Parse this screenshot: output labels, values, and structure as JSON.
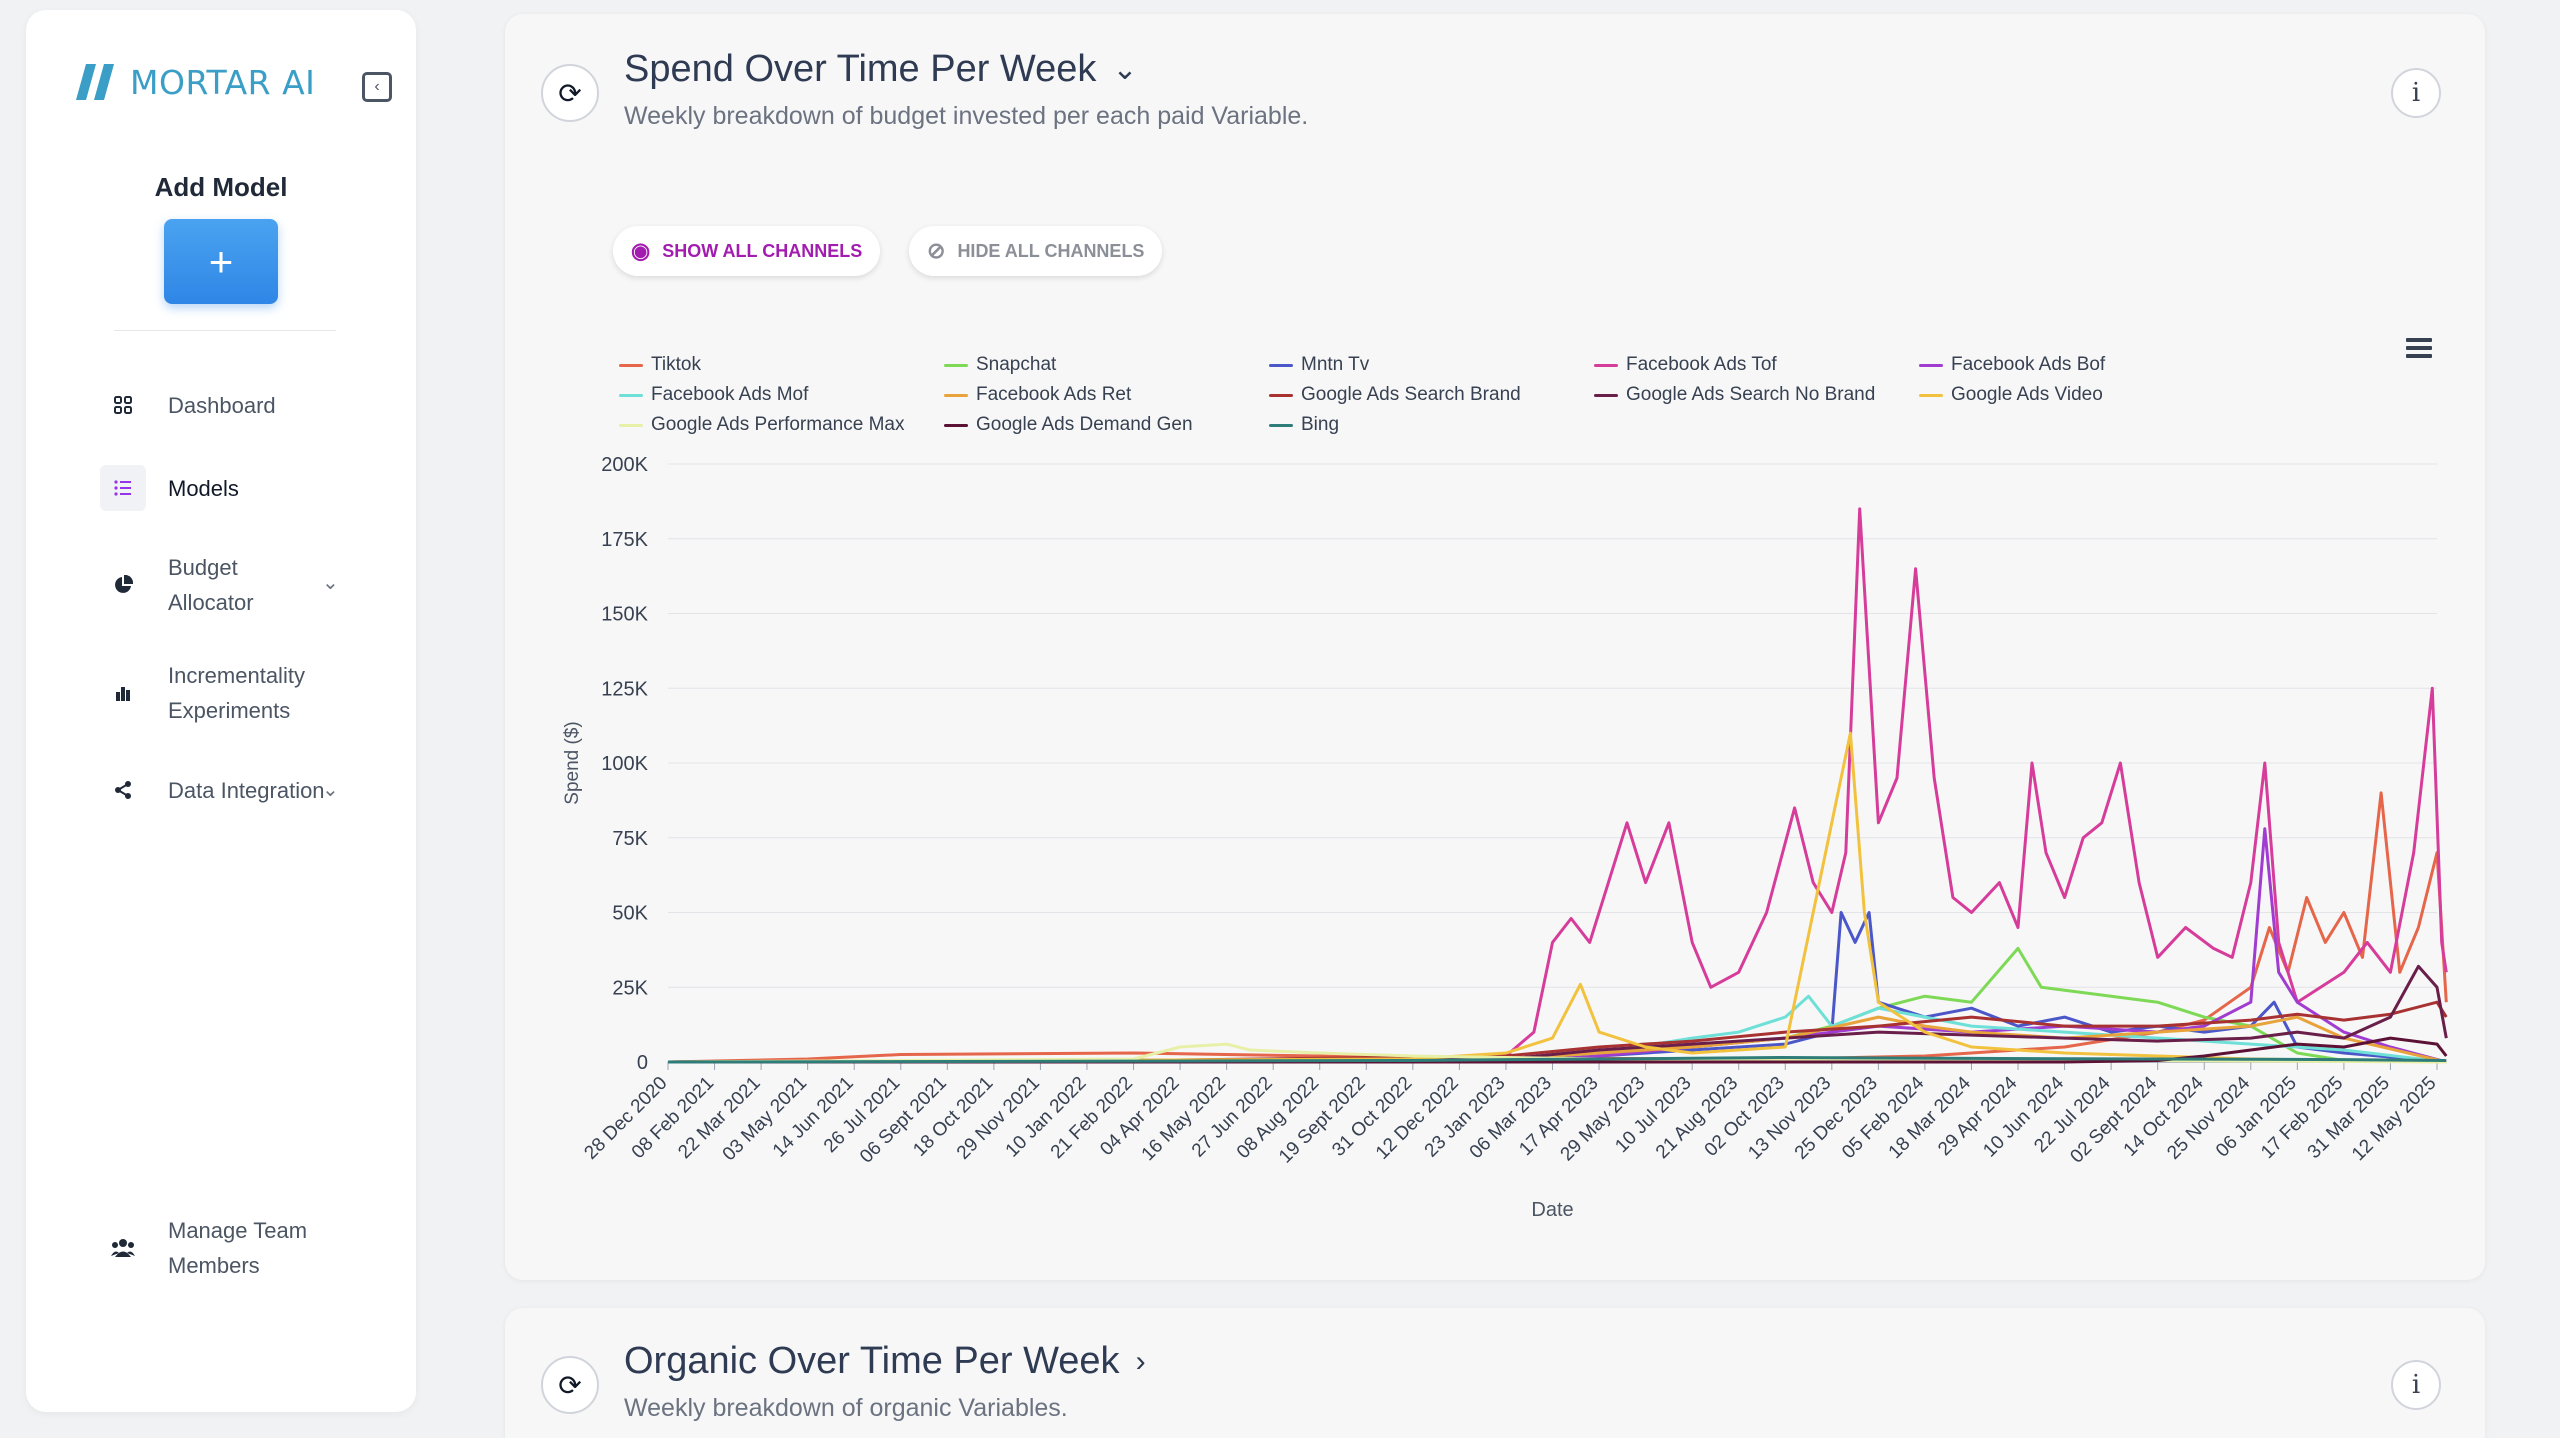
{
  "app": {
    "brand": "MORTAR AI"
  },
  "sidebar": {
    "add_model_title": "Add Model",
    "add_button_label": "+",
    "items": [
      {
        "label": "Dashboard",
        "icon": "dashboard-grid-icon"
      },
      {
        "label": "Models",
        "icon": "list-icon",
        "active": true
      },
      {
        "label": "Budget Allocator",
        "icon": "pie-chart-icon"
      },
      {
        "label": "Incrementality Experiments",
        "icon": "bar-chart-icon"
      },
      {
        "label": "Data Integration",
        "icon": "share-nodes-icon"
      },
      {
        "label": "Manage Team Members",
        "icon": "team-icon"
      }
    ]
  },
  "card1": {
    "title": "Spend Over Time Per Week",
    "subtitle": "Weekly breakdown of budget invested per each paid Variable.",
    "show_all": "SHOW ALL CHANNELS",
    "hide_all": "HIDE ALL CHANNELS"
  },
  "card2": {
    "title": "Organic Over Time Per Week",
    "subtitle": "Weekly breakdown of organic Variables."
  },
  "colors": {
    "accent": "#9333ea",
    "brand": "#3a9ec6",
    "add_button": "#2f86e6"
  },
  "chart_data": {
    "type": "line",
    "xlabel": "Date",
    "ylabel": "Spend ($)",
    "ylim": [
      0,
      200000
    ],
    "yticks": [
      "0",
      "25K",
      "50K",
      "75K",
      "100K",
      "125K",
      "150K",
      "175K",
      "200K"
    ],
    "xtick_labels": [
      "28 Dec 2020",
      "08 Feb 2021",
      "22 Mar 2021",
      "03 May 2021",
      "14 Jun 2021",
      "26 Jul 2021",
      "06 Sept 2021",
      "18 Oct 2021",
      "29 Nov 2021",
      "10 Jan 2022",
      "21 Feb 2022",
      "04 Apr 2022",
      "16 May 2022",
      "27 Jun 2022",
      "08 Aug 2022",
      "19 Sept 2022",
      "31 Oct 2022",
      "12 Dec 2022",
      "23 Jan 2023",
      "06 Mar 2023",
      "17 Apr 2023",
      "29 May 2023",
      "10 Jul 2023",
      "21 Aug 2023",
      "02 Oct 2023",
      "13 Nov 2023",
      "25 Dec 2023",
      "05 Feb 2024",
      "18 Mar 2024",
      "29 Apr 2024",
      "10 Jun 2024",
      "22 Jul 2024",
      "02 Sept 2024",
      "14 Oct 2024",
      "25 Nov 2024",
      "06 Jan 2025",
      "17 Feb 2025",
      "31 Mar 2025",
      "12 May 2025"
    ],
    "legend_placement": "top",
    "grid": true,
    "series": [
      {
        "name": "Tiktok",
        "color": "#e5664a",
        "points": [
          [
            0,
            0
          ],
          [
            3,
            1000
          ],
          [
            5,
            2500
          ],
          [
            10,
            3000
          ],
          [
            14,
            2000
          ],
          [
            17,
            1500
          ],
          [
            20,
            1200
          ],
          [
            24,
            1000
          ],
          [
            27,
            2000
          ],
          [
            30,
            5000
          ],
          [
            32,
            10000
          ],
          [
            33,
            14000
          ],
          [
            34,
            25000
          ],
          [
            34.4,
            45000
          ],
          [
            34.8,
            30000
          ],
          [
            35.2,
            55000
          ],
          [
            35.6,
            40000
          ],
          [
            36,
            50000
          ],
          [
            36.4,
            35000
          ],
          [
            36.8,
            90000
          ],
          [
            37.2,
            30000
          ],
          [
            37.6,
            45000
          ],
          [
            38,
            70000
          ],
          [
            38.2,
            20000
          ]
        ]
      },
      {
        "name": "Snapchat",
        "color": "#7ed957",
        "points": [
          [
            0,
            0
          ],
          [
            15,
            200
          ],
          [
            18,
            1000
          ],
          [
            20,
            3000
          ],
          [
            22,
            5000
          ],
          [
            24,
            8000
          ],
          [
            25,
            12000
          ],
          [
            26,
            18000
          ],
          [
            27,
            22000
          ],
          [
            28,
            20000
          ],
          [
            29,
            38000
          ],
          [
            29.5,
            25000
          ],
          [
            30,
            24000
          ],
          [
            31,
            22000
          ],
          [
            32,
            20000
          ],
          [
            33,
            15000
          ],
          [
            34,
            12000
          ],
          [
            35,
            3000
          ],
          [
            36,
            500
          ],
          [
            38.2,
            0
          ]
        ]
      },
      {
        "name": "Mntn Tv",
        "color": "#4b57c8",
        "points": [
          [
            0,
            0
          ],
          [
            18,
            500
          ],
          [
            20,
            2000
          ],
          [
            22,
            4000
          ],
          [
            24,
            6000
          ],
          [
            25,
            10000
          ],
          [
            25.2,
            50000
          ],
          [
            25.5,
            40000
          ],
          [
            25.8,
            50000
          ],
          [
            26,
            20000
          ],
          [
            27,
            15000
          ],
          [
            28,
            18000
          ],
          [
            29,
            12000
          ],
          [
            30,
            15000
          ],
          [
            31,
            10000
          ],
          [
            32,
            12000
          ],
          [
            33,
            10000
          ],
          [
            34,
            12000
          ],
          [
            34.5,
            20000
          ],
          [
            35,
            5000
          ],
          [
            36,
            3000
          ],
          [
            38.2,
            0
          ]
        ]
      },
      {
        "name": "Facebook Ads Tof",
        "color": "#d63d9a",
        "points": [
          [
            0,
            0
          ],
          [
            16,
            0
          ],
          [
            17,
            1000
          ],
          [
            18,
            2000
          ],
          [
            18.6,
            10000
          ],
          [
            19,
            40000
          ],
          [
            19.4,
            48000
          ],
          [
            19.8,
            40000
          ],
          [
            20.2,
            60000
          ],
          [
            20.6,
            80000
          ],
          [
            21,
            60000
          ],
          [
            21.5,
            80000
          ],
          [
            22,
            40000
          ],
          [
            22.4,
            25000
          ],
          [
            23,
            30000
          ],
          [
            23.6,
            50000
          ],
          [
            24.2,
            85000
          ],
          [
            24.6,
            60000
          ],
          [
            25,
            50000
          ],
          [
            25.3,
            70000
          ],
          [
            25.6,
            185000
          ],
          [
            26,
            80000
          ],
          [
            26.4,
            95000
          ],
          [
            26.8,
            165000
          ],
          [
            27.2,
            95000
          ],
          [
            27.6,
            55000
          ],
          [
            28,
            50000
          ],
          [
            28.6,
            60000
          ],
          [
            29,
            45000
          ],
          [
            29.3,
            100000
          ],
          [
            29.6,
            70000
          ],
          [
            30,
            55000
          ],
          [
            30.4,
            75000
          ],
          [
            30.8,
            80000
          ],
          [
            31.2,
            100000
          ],
          [
            31.6,
            60000
          ],
          [
            32,
            35000
          ],
          [
            32.6,
            45000
          ],
          [
            33.2,
            38000
          ],
          [
            33.6,
            35000
          ],
          [
            34,
            60000
          ],
          [
            34.3,
            100000
          ],
          [
            34.6,
            40000
          ],
          [
            35,
            20000
          ],
          [
            36,
            30000
          ],
          [
            36.5,
            40000
          ],
          [
            37,
            30000
          ],
          [
            37.5,
            70000
          ],
          [
            37.9,
            125000
          ],
          [
            38.1,
            40000
          ],
          [
            38.2,
            30000
          ]
        ]
      },
      {
        "name": "Facebook Ads Bof",
        "color": "#a03ccf",
        "points": [
          [
            0,
            0
          ],
          [
            18,
            0
          ],
          [
            20,
            2000
          ],
          [
            22,
            5000
          ],
          [
            24,
            8000
          ],
          [
            26,
            12000
          ],
          [
            28,
            10000
          ],
          [
            30,
            12000
          ],
          [
            32,
            10000
          ],
          [
            33,
            12000
          ],
          [
            34,
            20000
          ],
          [
            34.3,
            78000
          ],
          [
            34.6,
            30000
          ],
          [
            35,
            20000
          ],
          [
            36,
            10000
          ],
          [
            37,
            5000
          ],
          [
            38.2,
            0
          ]
        ]
      },
      {
        "name": "Facebook Ads Mof",
        "color": "#6fe0d7",
        "points": [
          [
            0,
            0
          ],
          [
            18,
            1000
          ],
          [
            20,
            3000
          ],
          [
            22,
            8000
          ],
          [
            23,
            10000
          ],
          [
            24,
            15000
          ],
          [
            24.5,
            22000
          ],
          [
            25,
            12000
          ],
          [
            26,
            18000
          ],
          [
            27,
            15000
          ],
          [
            28,
            12000
          ],
          [
            30,
            10000
          ],
          [
            32,
            8000
          ],
          [
            34,
            6000
          ],
          [
            36,
            4000
          ],
          [
            38.2,
            0
          ]
        ]
      },
      {
        "name": "Facebook Ads Ret",
        "color": "#e8a33b",
        "points": [
          [
            0,
            0
          ],
          [
            18,
            1000
          ],
          [
            20,
            3000
          ],
          [
            22,
            5000
          ],
          [
            24,
            8000
          ],
          [
            26,
            15000
          ],
          [
            27,
            12000
          ],
          [
            28,
            10000
          ],
          [
            30,
            8000
          ],
          [
            32,
            10000
          ],
          [
            34,
            12000
          ],
          [
            35,
            15000
          ],
          [
            36,
            8000
          ],
          [
            38.2,
            0
          ]
        ]
      },
      {
        "name": "Google Ads Search Brand",
        "color": "#a83131",
        "points": [
          [
            0,
            0
          ],
          [
            10,
            500
          ],
          [
            18,
            2000
          ],
          [
            20,
            5000
          ],
          [
            22,
            7000
          ],
          [
            24,
            10000
          ],
          [
            26,
            12000
          ],
          [
            28,
            15000
          ],
          [
            30,
            12000
          ],
          [
            32,
            12000
          ],
          [
            34,
            14000
          ],
          [
            35,
            16000
          ],
          [
            36,
            14000
          ],
          [
            37,
            16000
          ],
          [
            38,
            20000
          ],
          [
            38.2,
            15000
          ]
        ]
      },
      {
        "name": "Google Ads Search No Brand",
        "color": "#6a1f4a",
        "points": [
          [
            0,
            0
          ],
          [
            18,
            1000
          ],
          [
            20,
            4000
          ],
          [
            22,
            6000
          ],
          [
            24,
            8000
          ],
          [
            26,
            10000
          ],
          [
            28,
            9000
          ],
          [
            30,
            8000
          ],
          [
            32,
            7000
          ],
          [
            34,
            8000
          ],
          [
            35,
            10000
          ],
          [
            36,
            8000
          ],
          [
            37,
            15000
          ],
          [
            37.6,
            32000
          ],
          [
            38,
            25000
          ],
          [
            38.2,
            8000
          ]
        ]
      },
      {
        "name": "Google Ads Video",
        "color": "#f2c23e",
        "points": [
          [
            0,
            0
          ],
          [
            16,
            1000
          ],
          [
            18,
            3000
          ],
          [
            19,
            8000
          ],
          [
            19.6,
            26000
          ],
          [
            20,
            10000
          ],
          [
            21,
            5000
          ],
          [
            22,
            3000
          ],
          [
            24,
            5000
          ],
          [
            25.4,
            110000
          ],
          [
            25.7,
            50000
          ],
          [
            26,
            20000
          ],
          [
            27,
            10000
          ],
          [
            28,
            5000
          ],
          [
            30,
            3000
          ],
          [
            32,
            2000
          ],
          [
            34,
            1000
          ],
          [
            38.2,
            0
          ]
        ]
      },
      {
        "name": "Google Ads Performance Max",
        "color": "#e8f0a8",
        "points": [
          [
            0,
            0
          ],
          [
            10,
            1000
          ],
          [
            11,
            5000
          ],
          [
            12,
            6000
          ],
          [
            12.5,
            4000
          ],
          [
            14,
            3000
          ],
          [
            16,
            2000
          ],
          [
            18,
            1500
          ],
          [
            20,
            1000
          ],
          [
            24,
            800
          ],
          [
            28,
            600
          ],
          [
            32,
            500
          ],
          [
            38.2,
            0
          ]
        ]
      },
      {
        "name": "Google Ads Demand Gen",
        "color": "#5c1235",
        "points": [
          [
            0,
            0
          ],
          [
            30,
            0
          ],
          [
            32,
            500
          ],
          [
            33,
            2000
          ],
          [
            34,
            4000
          ],
          [
            35,
            6000
          ],
          [
            36,
            5000
          ],
          [
            37,
            8000
          ],
          [
            38,
            6000
          ],
          [
            38.2,
            2000
          ]
        ]
      },
      {
        "name": "Bing",
        "color": "#2f7d79",
        "points": [
          [
            0,
            0
          ],
          [
            10,
            300
          ],
          [
            16,
            500
          ],
          [
            18,
            800
          ],
          [
            20,
            1000
          ],
          [
            24,
            1500
          ],
          [
            28,
            1200
          ],
          [
            32,
            1000
          ],
          [
            36,
            800
          ],
          [
            38.2,
            500
          ]
        ]
      }
    ]
  }
}
